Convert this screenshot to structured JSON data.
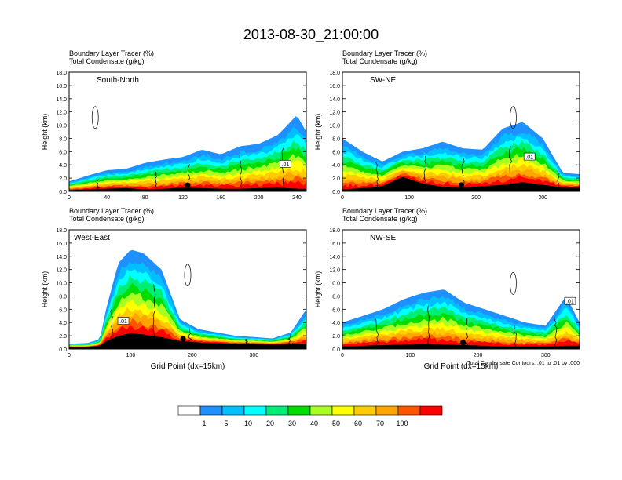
{
  "title": "2013-08-30_21:00:00",
  "colors": {
    "black": "#000000",
    "ground": "#000000",
    "contour": "#000000",
    "scale": [
      "#ffffff",
      "#1e90ff",
      "#00bfff",
      "#00ffff",
      "#00ee76",
      "#00dd00",
      "#aaff22",
      "#ffff00",
      "#ffcc00",
      "#ffa500",
      "#ff5500",
      "#ff0000"
    ]
  },
  "chart_data": [
    {
      "type": "heatmap",
      "name": "panel-south-north",
      "label": "South-North",
      "subtitle_lines": [
        "Boundary Layer Tracer   (%)",
        "Total Condensate   (g/kg)"
      ],
      "ylabel": "Height (km)",
      "xlabel": "",
      "xlim": [
        0,
        250
      ],
      "ylim": [
        0,
        18
      ],
      "xticks": [
        "0",
        "40",
        "80",
        "120",
        "160",
        "200",
        "240"
      ],
      "xtick_values": [
        0,
        40,
        80,
        120,
        160,
        200,
        240
      ],
      "yticks": [
        "0.0",
        "2.0",
        "4.0",
        "6.0",
        "8.0",
        "10.0",
        "12.0",
        "14.0",
        "16.0",
        "18.0"
      ],
      "profile": {
        "x": [
          0,
          20,
          40,
          60,
          80,
          100,
          120,
          140,
          160,
          180,
          200,
          220,
          240,
          250
        ],
        "ground": [
          0.2,
          0.3,
          0.4,
          0.5,
          0.3,
          0.4,
          0.6,
          0.5,
          0.4,
          0.4,
          0.5,
          0.6,
          0.4,
          0.4
        ],
        "top": [
          1.5,
          2.4,
          3.2,
          3.4,
          4.3,
          4.8,
          5.2,
          6.3,
          5.6,
          6.8,
          7.2,
          8.5,
          11.5,
          9.0
        ]
      },
      "marker_x": 125,
      "contour_label": ".01",
      "contour_label_x": 228,
      "contour_label_y": 4.1,
      "footnote": ""
    },
    {
      "type": "heatmap",
      "name": "panel-sw-ne",
      "label": "SW-NE",
      "subtitle_lines": [
        "Boundary Layer Tracer   (%)",
        "Total Condensate   (g/kg)"
      ],
      "ylabel": "Height (km)",
      "xlabel": "",
      "xlim": [
        0,
        355
      ],
      "ylim": [
        0,
        18
      ],
      "xticks": [
        "0",
        "100",
        "200",
        "300"
      ],
      "xtick_values": [
        0,
        100,
        200,
        300
      ],
      "yticks": [
        "0.0",
        "2.0",
        "4.0",
        "6.0",
        "8.0",
        "10.0",
        "12.0",
        "14.0",
        "16.0",
        "18.0"
      ],
      "profile": {
        "x": [
          0,
          30,
          60,
          90,
          120,
          150,
          180,
          210,
          240,
          270,
          300,
          330,
          355
        ],
        "ground": [
          0.3,
          0.5,
          0.8,
          2.2,
          1.2,
          0.7,
          0.6,
          0.8,
          1.0,
          1.4,
          1.0,
          0.6,
          0.6
        ],
        "top": [
          8.0,
          6.0,
          4.5,
          6.0,
          6.5,
          7.5,
          6.5,
          6.3,
          9.5,
          10.5,
          8.0,
          2.8,
          2.6
        ]
      },
      "marker_x": 178,
      "contour_label": ".01",
      "contour_label_x": 280,
      "contour_label_y": 5.2,
      "footnote": ""
    },
    {
      "type": "heatmap",
      "name": "panel-west-east",
      "label": "West-East",
      "subtitle_lines": [
        "Boundary Layer Tracer   (%)",
        "Total Condensate   (g/kg)"
      ],
      "ylabel": "Height (km)",
      "xlabel": "Grid Point (dx=15km)",
      "xlim": [
        0,
        385
      ],
      "ylim": [
        0,
        18
      ],
      "xticks": [
        "0",
        "100",
        "200",
        "300"
      ],
      "xtick_values": [
        0,
        100,
        200,
        300
      ],
      "yticks": [
        "0.0",
        "2.0",
        "4.0",
        "6.0",
        "8.0",
        "10.0",
        "12.0",
        "14.0",
        "16.0",
        "18.0"
      ],
      "profile": {
        "x": [
          0,
          30,
          50,
          60,
          80,
          100,
          120,
          150,
          180,
          210,
          240,
          270,
          300,
          330,
          360,
          385
        ],
        "ground": [
          0.3,
          0.3,
          0.5,
          1.2,
          2.0,
          2.4,
          2.2,
          1.8,
          1.2,
          1.0,
          0.9,
          0.8,
          0.8,
          0.7,
          0.8,
          0.8
        ],
        "top": [
          0.8,
          0.9,
          1.5,
          6.0,
          13.0,
          15.0,
          14.5,
          12.0,
          4.5,
          3.0,
          2.5,
          2.0,
          1.8,
          1.6,
          2.5,
          6.0
        ]
      },
      "marker_x": 185,
      "contour_label": ".01",
      "contour_label_x": 88,
      "contour_label_y": 4.2,
      "footnote": ""
    },
    {
      "type": "heatmap",
      "name": "panel-nw-se",
      "label": "NW-SE",
      "subtitle_lines": [
        "Boundary Layer Tracer   (%)",
        "Total Condensate   (g/kg)"
      ],
      "ylabel": "Height (km)",
      "xlabel": "Grid Point (dx=15km)",
      "xlim": [
        0,
        350
      ],
      "ylim": [
        0,
        18
      ],
      "xticks": [
        "0",
        "100",
        "200",
        "300"
      ],
      "xtick_values": [
        0,
        100,
        200,
        300
      ],
      "yticks": [
        "0.0",
        "2.0",
        "4.0",
        "6.0",
        "8.0",
        "10.0",
        "12.0",
        "14.0",
        "16.0",
        "18.0"
      ],
      "profile": {
        "x": [
          0,
          30,
          60,
          90,
          120,
          150,
          180,
          210,
          240,
          270,
          300,
          330,
          350
        ],
        "ground": [
          0.4,
          0.5,
          0.6,
          0.7,
          0.8,
          0.7,
          0.6,
          0.5,
          0.4,
          0.4,
          0.4,
          0.5,
          0.5
        ],
        "top": [
          4.0,
          5.0,
          6.0,
          7.5,
          8.5,
          9.0,
          7.0,
          6.0,
          5.0,
          4.0,
          3.5,
          8.0,
          4.0
        ]
      },
      "marker_x": 178,
      "contour_label": ".01",
      "contour_label_x": 336,
      "contour_label_y": 7.2,
      "footnote": "Total Condensate Contours: .01 to .01 by .000"
    }
  ],
  "colorbar": {
    "labels": [
      "1",
      "5",
      "10",
      "20",
      "30",
      "40",
      "50",
      "60",
      "70",
      "100"
    ]
  }
}
